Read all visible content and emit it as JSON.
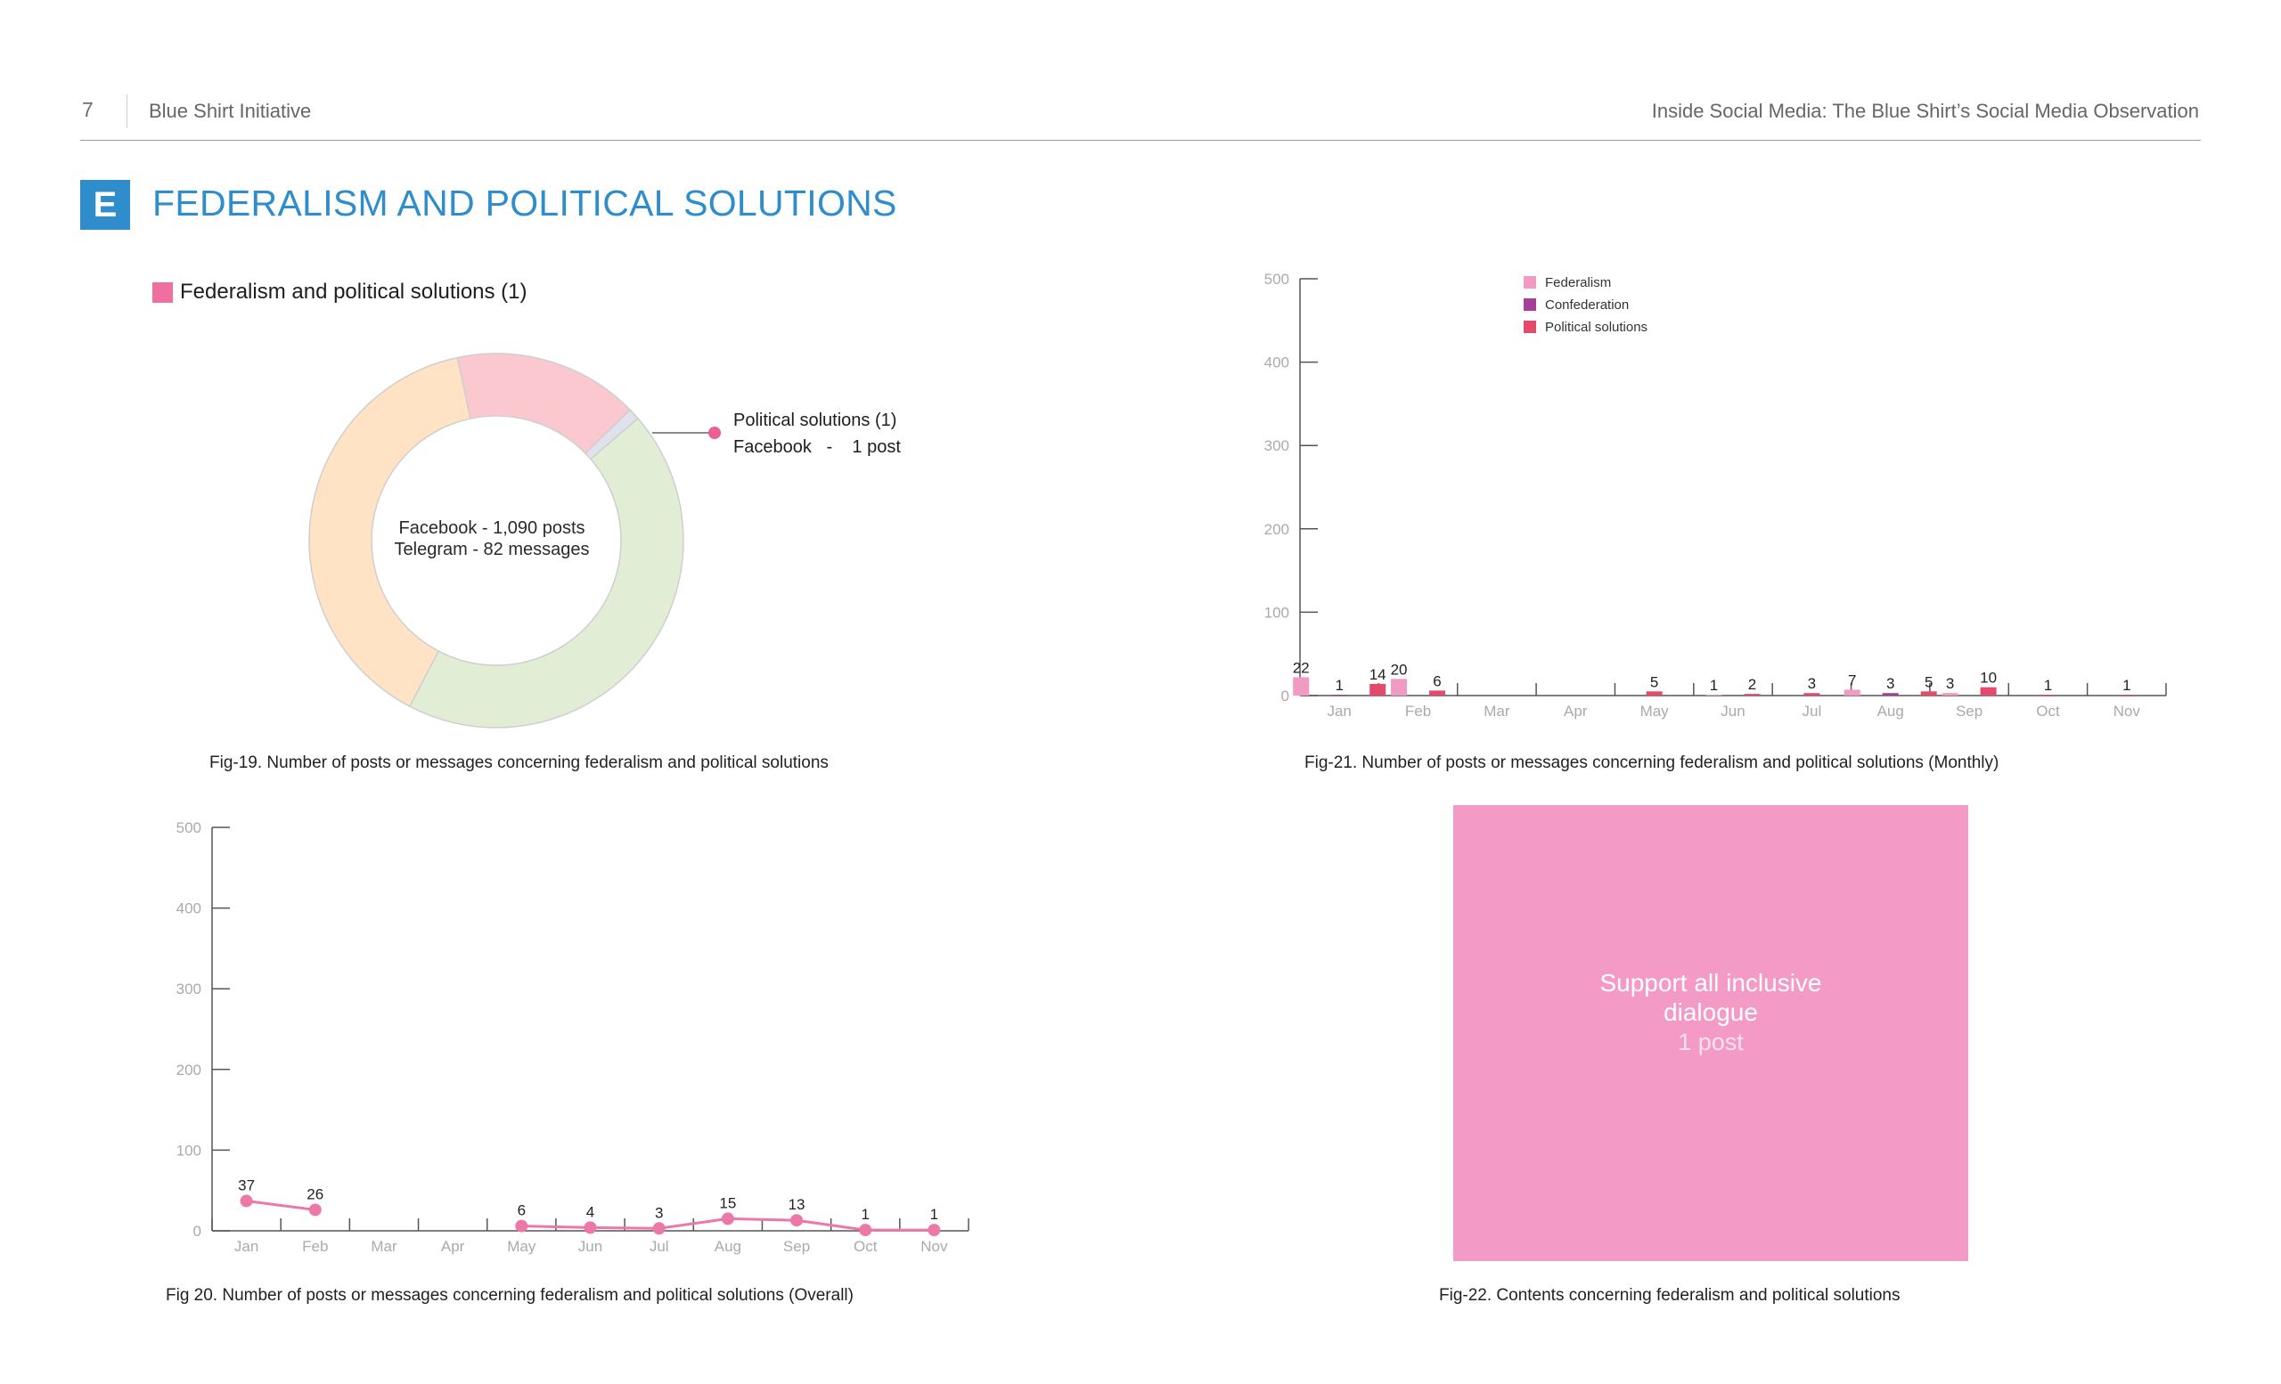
{
  "header": {
    "page_number": "7",
    "org": "Blue Shirt Initiative",
    "doc_title": "Inside Social Media: The Blue Shirt’s Social Media Observation"
  },
  "section": {
    "letter": "E",
    "title": "FEDERALISM AND POLITICAL SOLUTIONS"
  },
  "colors": {
    "accent": "#2f8dcb",
    "federalism": "#f09ac4",
    "confederation": "#a63f9a",
    "political_solutions": "#e44a6b",
    "line": "#ec78a8"
  },
  "fig19": {
    "legend_label": "Federalism and political solutions (1)",
    "center_line1": "Facebook - 1,090 posts",
    "center_line2": "Telegram - 82 messages",
    "callout_title": "Political solutions (1)",
    "callout_detail": "Facebook   -    1 post",
    "caption": "Fig-19. Number of posts or messages concerning federalism and political solutions"
  },
  "fig20": {
    "caption": "Fig 20. Number of posts or messages concerning federalism and political solutions  (Overall)"
  },
  "fig21": {
    "caption": "Fig-21. Number of posts or messages concerning federalism and political solutions  (Monthly)"
  },
  "fig22": {
    "label": "Support all inclusive dialogue",
    "count": "1 post",
    "caption": "Fig-22. Contents concerning federalism and political solutions"
  },
  "chart_data": [
    {
      "id": "fig19",
      "type": "pie",
      "variant": "donut",
      "slices": [
        {
          "label": "",
          "value": 16,
          "color": "#fcc8cf"
        },
        {
          "label": "Political solutions (1)",
          "value": 1,
          "color": "#dfe2ec"
        },
        {
          "label": "",
          "value": 44,
          "color": "#e1edd4"
        },
        {
          "label": "",
          "value": 39,
          "color": "#ffe3c4"
        }
      ]
    },
    {
      "id": "fig20",
      "type": "line",
      "categories": [
        "Jan",
        "Feb",
        "Mar",
        "Apr",
        "May",
        "Jun",
        "Jul",
        "Aug",
        "Sep",
        "Oct",
        "Nov"
      ],
      "values": [
        37,
        26,
        null,
        null,
        6,
        4,
        3,
        15,
        13,
        1,
        1
      ],
      "ylim": [
        0,
        500
      ],
      "yticks": [
        0,
        100,
        200,
        300,
        400,
        500
      ],
      "grid": false
    },
    {
      "id": "fig21",
      "type": "bar",
      "categories": [
        "Jan",
        "Feb",
        "Mar",
        "Apr",
        "May",
        "Jun",
        "Jul",
        "Aug",
        "Sep",
        "Oct",
        "Nov"
      ],
      "series": [
        {
          "name": "Federalism",
          "color": "#f09ac4",
          "values": [
            22,
            20,
            null,
            null,
            null,
            1,
            null,
            7,
            3,
            null,
            null
          ]
        },
        {
          "name": "Confederation",
          "color": "#a63f9a",
          "values": [
            1,
            null,
            null,
            null,
            null,
            null,
            null,
            3,
            null,
            null,
            null
          ]
        },
        {
          "name": "Political solutions",
          "color": "#e44a6b",
          "values": [
            14,
            6,
            null,
            null,
            5,
            2,
            3,
            5,
            10,
            1,
            1
          ]
        }
      ],
      "ylim": [
        0,
        500
      ],
      "yticks": [
        0,
        100,
        200,
        300,
        400,
        500
      ],
      "legend": "top",
      "grid": false
    }
  ]
}
